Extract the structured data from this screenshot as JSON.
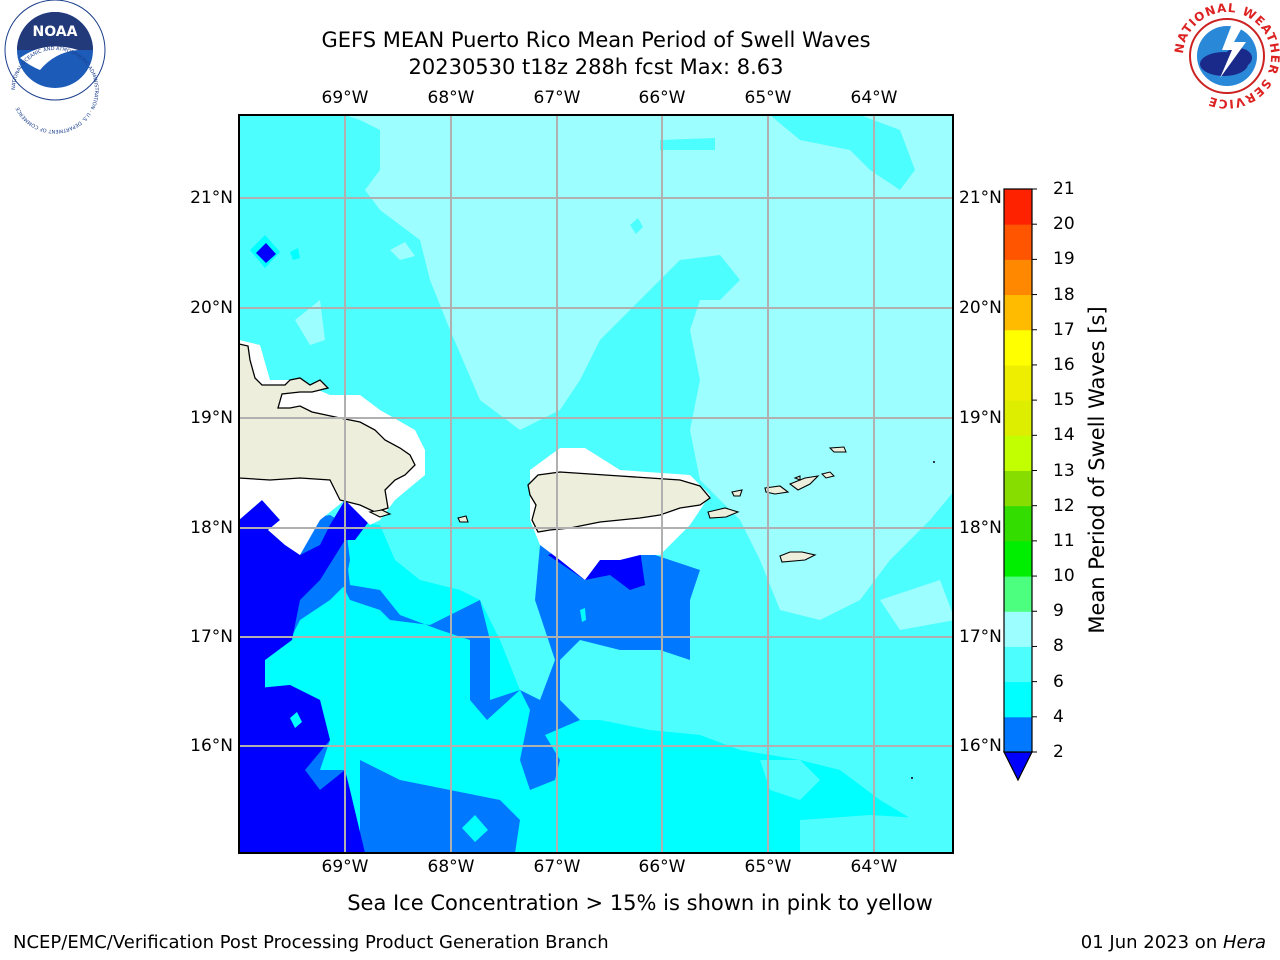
{
  "title": {
    "line1": "GEFS MEAN Puerto Rico Mean Period of Swell Waves",
    "line2": "20230530 t18z 288h fcst   Max: 8.63"
  },
  "map": {
    "lon_ticks": [
      "69°W",
      "68°W",
      "67°W",
      "66°W",
      "65°W",
      "64°W"
    ],
    "lat_ticks": [
      "21°N",
      "20°N",
      "19°N",
      "18°N",
      "17°N",
      "16°N"
    ],
    "lon_range": [
      -70.0,
      -63.25
    ],
    "lat_range": [
      15.0,
      21.75
    ],
    "land_color": "#eeeedd",
    "contour_colors": {
      "lt2": "#0000ff",
      "2_4": "#0078ff",
      "4_6": "#00ffff",
      "6_8": "#4dfeff",
      "8_9": "#9cfefe"
    }
  },
  "colorbar": {
    "label": "Mean Period of Swell Waves [s]",
    "ticks": [
      "2",
      "4",
      "6",
      "8",
      "9",
      "10",
      "11",
      "12",
      "13",
      "14",
      "15",
      "16",
      "17",
      "18",
      "19",
      "20",
      "21"
    ],
    "colors": [
      "#0078ff",
      "#00ffff",
      "#4dfeff",
      "#9cfefe",
      "#4dff7e",
      "#00ee00",
      "#33dd00",
      "#88dd00",
      "#c2ff00",
      "#ddee00",
      "#eeee00",
      "#ffff00",
      "#ffbb00",
      "#ff8800",
      "#ff5500",
      "#ff2200"
    ],
    "extend_color": "#0000ff"
  },
  "note": "Sea Ice Concentration > 15% is shown in pink to yellow",
  "footer": {
    "left": "NCEP/EMC/Verification Post Processing Product Generation Branch",
    "date": "01 Jun 2023 on ",
    "host": "Hera"
  },
  "logos": {
    "left_text": "NOAA",
    "left_ring": "NATIONAL OCEANIC AND ATMOSPHERIC ADMINISTRATION · U.S. DEPARTMENT OF COMMERCE",
    "right_ring": "NATIONAL WEATHER SERVICE"
  }
}
